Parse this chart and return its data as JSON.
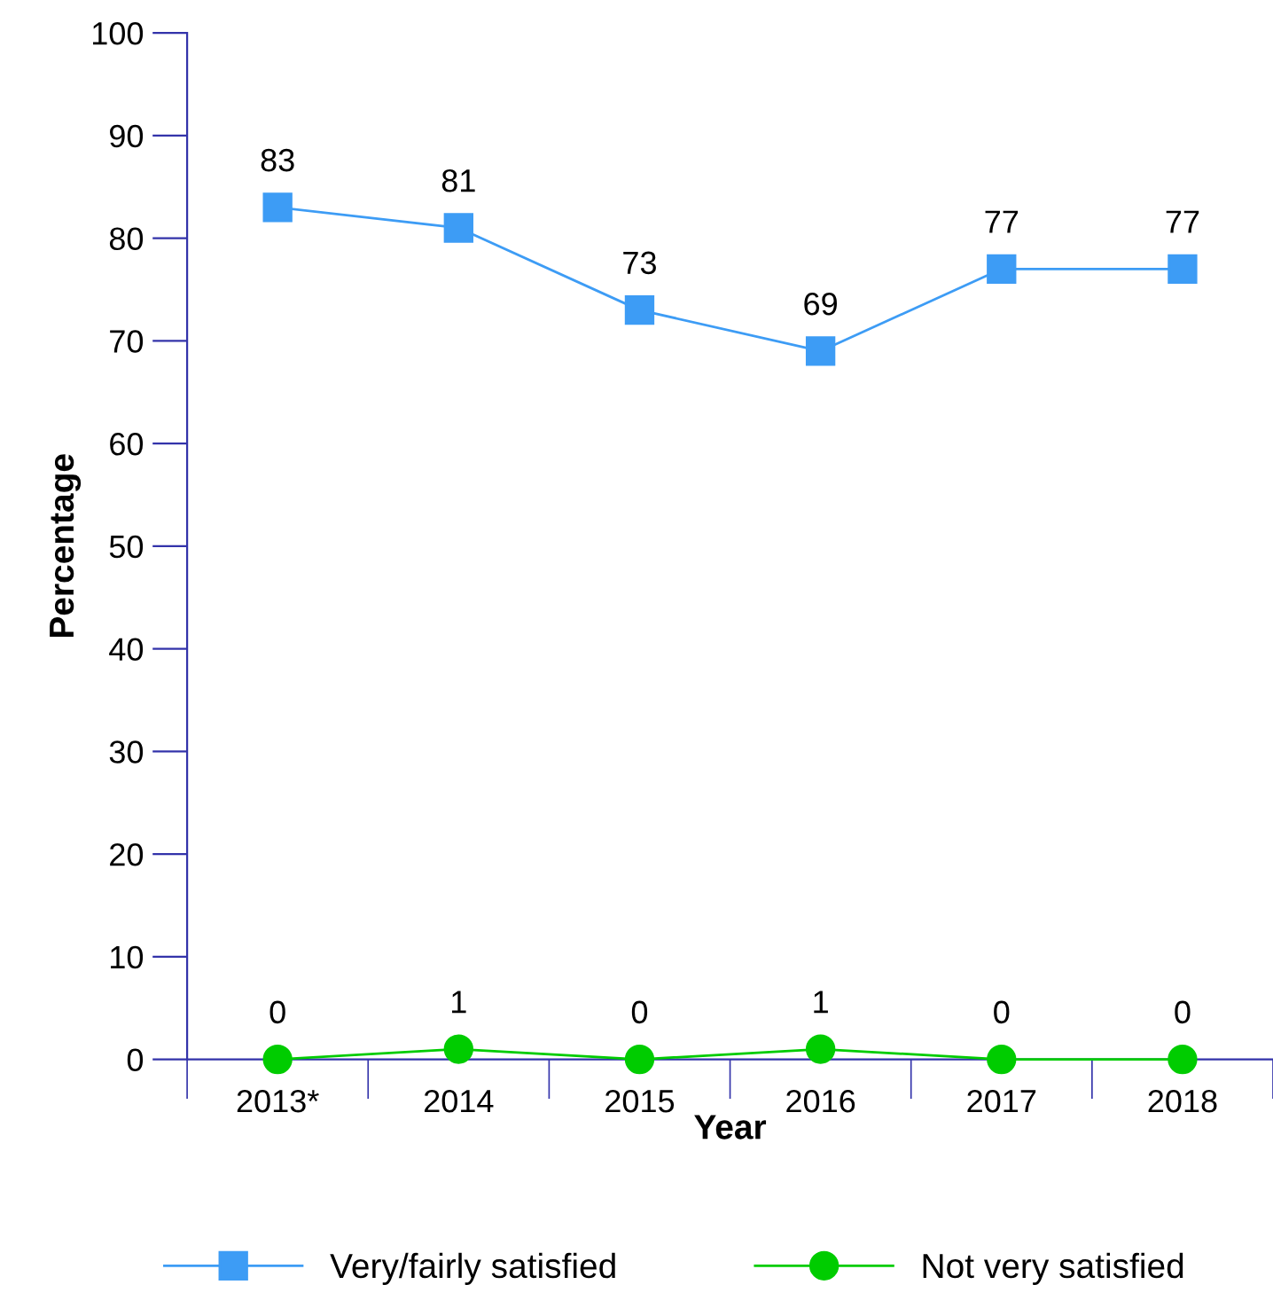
{
  "chart_data": {
    "type": "line",
    "xlabel": "Year",
    "ylabel": "Percentage",
    "categories": [
      "2013*",
      "2014",
      "2015",
      "2016",
      "2017",
      "2018"
    ],
    "series": [
      {
        "name": "Very/fairly satisfied",
        "color": "#3d9cf5",
        "values": [
          83,
          81,
          73,
          69,
          77,
          77
        ],
        "marker": "square"
      },
      {
        "name": "Not very satisfied",
        "color": "#00cc00",
        "values": [
          0,
          1,
          0,
          1,
          0,
          0
        ],
        "marker": "circle"
      }
    ],
    "ylim": [
      0,
      100
    ],
    "yticks": [
      0,
      10,
      20,
      30,
      40,
      50,
      60,
      70,
      80,
      90,
      100
    ],
    "data_labels": true,
    "grid": false,
    "legend": "bottom",
    "line_style": "solid"
  }
}
